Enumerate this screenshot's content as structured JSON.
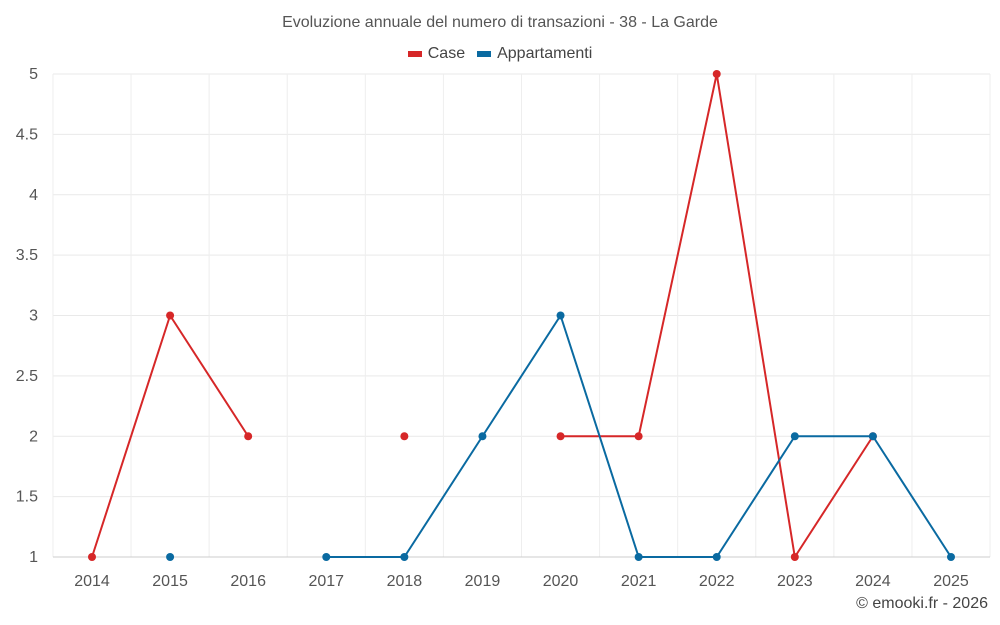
{
  "title": "Evoluzione annuale del numero di transazioni - 38 - La Garde",
  "credit": "© emooki.fr - 2026",
  "colors": {
    "case": "#d62728",
    "appartamenti": "#0a6aa1"
  },
  "chart_data": {
    "type": "line",
    "title": "Evoluzione annuale del numero di transazioni - 38 - La Garde",
    "xlabel": "",
    "ylabel": "",
    "categories": [
      "2014",
      "2015",
      "2016",
      "2017",
      "2018",
      "2019",
      "2020",
      "2021",
      "2022",
      "2023",
      "2024",
      "2025"
    ],
    "ylim": [
      1,
      5
    ],
    "yticks": [
      "1",
      "1.5",
      "2",
      "2.5",
      "3",
      "3.5",
      "4",
      "4.5",
      "5"
    ],
    "grid": true,
    "legend_position": "top-center",
    "series": [
      {
        "name": "Case",
        "color": "#d62728",
        "values": [
          1,
          3,
          2,
          null,
          2,
          null,
          2,
          2,
          5,
          1,
          2,
          null
        ]
      },
      {
        "name": "Appartamenti",
        "color": "#0a6aa1",
        "values": [
          null,
          1,
          null,
          1,
          1,
          2,
          3,
          1,
          1,
          2,
          2,
          1
        ]
      }
    ]
  }
}
